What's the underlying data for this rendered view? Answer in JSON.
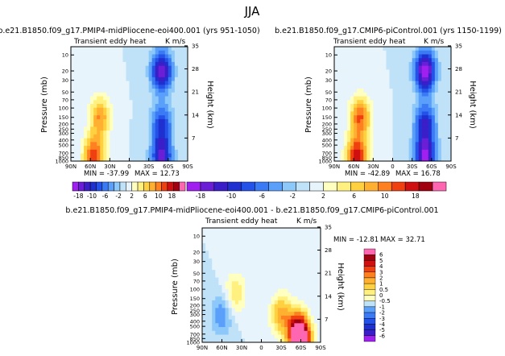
{
  "figure_title": "JJA",
  "chart_data": [
    {
      "type": "heatmap",
      "title": "b.e21.B1850.f09_g17.PMIP4-midPliocene-eoi400.001  (yrs 951-1050)",
      "subtitle_left": "Transient eddy heat",
      "units": "K m/s",
      "xlabel": "",
      "ylabel": "Pressure (mb)",
      "ylabel_right": "Height (km)",
      "xticks": [
        "90N",
        "60N",
        "30N",
        "0",
        "30S",
        "60S",
        "90S"
      ],
      "yticks": [
        "10",
        "20",
        "30",
        "50",
        "70",
        "100",
        "150",
        "200",
        "250",
        "300",
        "400",
        "500",
        "700",
        "850",
        "1000"
      ],
      "height_ticks": [
        "35",
        "28",
        "21",
        "14",
        "7"
      ],
      "min_label": "MIN = -37.99",
      "max_label": "MAX = 12.73",
      "features": [
        {
          "lat": -50,
          "p": 20,
          "value": -16
        },
        {
          "lat": -50,
          "p": 200,
          "value": -10
        },
        {
          "lat": -50,
          "p": 850,
          "value": -14
        },
        {
          "lat": 45,
          "p": 150,
          "value": 10
        },
        {
          "lat": 55,
          "p": 850,
          "value": 14
        }
      ]
    },
    {
      "type": "heatmap",
      "title": "b.e21.B1850.f09_g17.CMIP6-piControl.001  (yrs 1150-1199)",
      "subtitle_left": "Transient eddy heat",
      "units": "K m/s",
      "xlabel": "",
      "ylabel": "Pressure (mb)",
      "ylabel_right": "Height (km)",
      "xticks": [
        "90N",
        "60N",
        "30N",
        "0",
        "30S",
        "60S",
        "90S"
      ],
      "yticks": [
        "10",
        "20",
        "30",
        "50",
        "70",
        "100",
        "150",
        "200",
        "250",
        "300",
        "400",
        "500",
        "700",
        "850",
        "1000"
      ],
      "height_ticks": [
        "35",
        "28",
        "21",
        "14",
        "7"
      ],
      "min_label": "MIN = -42.89",
      "max_label": "MAX = 16.78",
      "features": [
        {
          "lat": -50,
          "p": 20,
          "value": -18
        },
        {
          "lat": -50,
          "p": 200,
          "value": -12
        },
        {
          "lat": -50,
          "p": 850,
          "value": -16
        },
        {
          "lat": 50,
          "p": 150,
          "value": 12
        },
        {
          "lat": 55,
          "p": 850,
          "value": 16
        }
      ]
    },
    {
      "type": "heatmap",
      "title": "b.e21.B1850.f09_g17.PMIP4-midPliocene-eoi400.001  -  b.e21.B1850.f09_g17.CMIP6-piControl.001",
      "subtitle_left": "Transient eddy heat",
      "units": "K m/s",
      "xlabel": "",
      "ylabel": "Pressure (mb)",
      "ylabel_right": "Height (km)",
      "xticks": [
        "90N",
        "60N",
        "30N",
        "0",
        "30S",
        "60S",
        "90S"
      ],
      "yticks": [
        "10",
        "20",
        "30",
        "50",
        "70",
        "100",
        "150",
        "200",
        "250",
        "300",
        "400",
        "500",
        "700",
        "850",
        "1000"
      ],
      "height_ticks": [
        "35",
        "28",
        "21",
        "14",
        "7"
      ],
      "min_label": "MIN = -12.81",
      "max_label": "MAX = 32.71",
      "features": [
        {
          "lat": -30,
          "p": 300,
          "value": 3
        },
        {
          "lat": -55,
          "p": 600,
          "value": 4
        },
        {
          "lat": 60,
          "p": 300,
          "value": -2
        },
        {
          "lat": 40,
          "p": 120,
          "value": 2
        },
        {
          "lat": -60,
          "p": 900,
          "value": 6
        }
      ]
    }
  ],
  "colorbar_top": {
    "orientation": "horizontal",
    "labels": [
      "-18",
      "-10",
      "-6",
      "-2",
      "2",
      "6",
      "10",
      "18"
    ],
    "colors": [
      "#a020f0",
      "#6a1fd6",
      "#3a1fc8",
      "#1f30d0",
      "#2452e8",
      "#3a7af5",
      "#5aa0fa",
      "#8cc8fa",
      "#c0e2f8",
      "#e8f4fb",
      "#ffffc0",
      "#fff080",
      "#ffd040",
      "#ffb030",
      "#ff8020",
      "#f04010",
      "#d01010",
      "#a00010",
      "#ff66b2"
    ]
  },
  "colorbar_diff": {
    "orientation": "vertical",
    "labels": [
      "6",
      "5",
      "4",
      "3",
      "2",
      "1",
      "0.5",
      "0",
      "-0.5",
      "-1",
      "-2",
      "-3",
      "-4",
      "-5",
      "-6"
    ],
    "colors": [
      "#ff66b2",
      "#a00010",
      "#d01010",
      "#f04010",
      "#ff8020",
      "#ffb030",
      "#ffd040",
      "#fff080",
      "#ffffc0",
      "#c0e2f8",
      "#5aa0fa",
      "#3a7af5",
      "#2452e8",
      "#1f30d0",
      "#3a1fc8",
      "#a020f0"
    ]
  }
}
